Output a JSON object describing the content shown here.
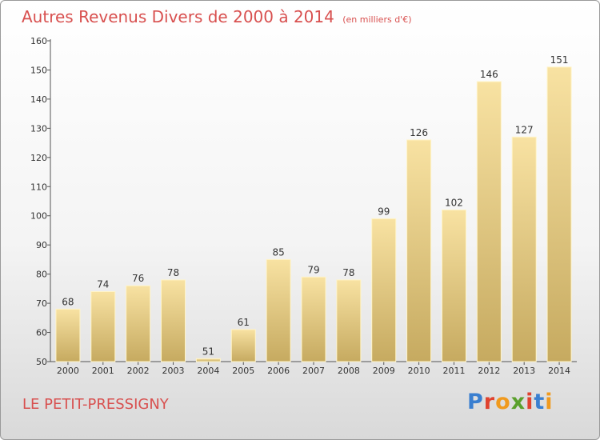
{
  "chart_data": {
    "type": "bar",
    "title": "Autres Revenus Divers de 2000 à 2014",
    "subtitle": "(en milliers d'€)",
    "categories": [
      "2000",
      "2001",
      "2002",
      "2003",
      "2004",
      "2005",
      "2006",
      "2007",
      "2008",
      "2009",
      "2010",
      "2011",
      "2012",
      "2013",
      "2014"
    ],
    "values": [
      68,
      74,
      76,
      78,
      51,
      61,
      85,
      79,
      78,
      99,
      126,
      102,
      146,
      127,
      151
    ],
    "ylim": [
      50,
      160
    ],
    "yticks": [
      50,
      60,
      70,
      80,
      90,
      100,
      110,
      120,
      130,
      140,
      150,
      160
    ],
    "xlabel": "",
    "ylabel": "",
    "grid": false
  },
  "footer": {
    "place": "LE PETIT-PRESSIGNY",
    "logo_letters": [
      "P",
      "r",
      "o",
      "x",
      "i",
      "t",
      "i"
    ],
    "logo_colors": [
      "#3a7fd0",
      "#e0432f",
      "#f09a1e",
      "#5aa02c",
      "#e0432f",
      "#3a7fd0",
      "#f09a1e"
    ]
  },
  "colors": {
    "title": "#d8504f",
    "bar_light": "#f8e0a0",
    "bar_dark": "#c8ac62"
  }
}
